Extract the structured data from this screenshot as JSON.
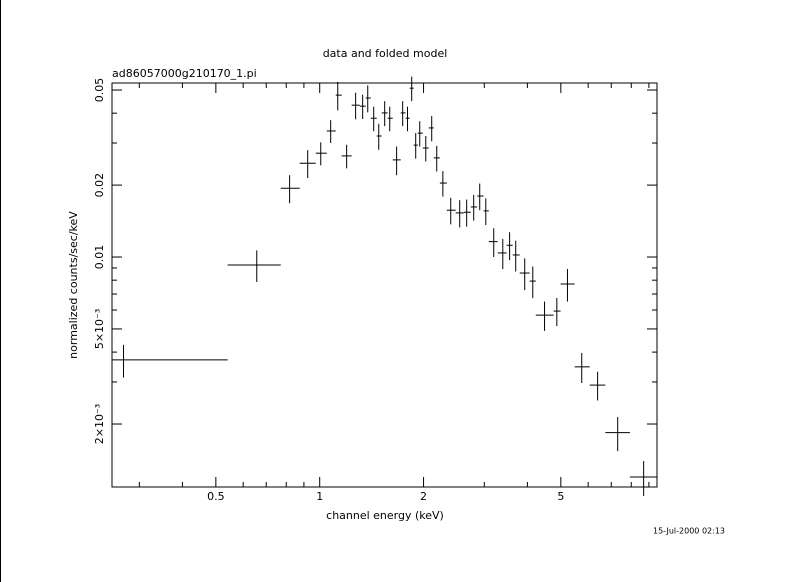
{
  "chart_data": {
    "type": "errorbar-scatter",
    "title": "data and folded model",
    "subtitle": "ad86057000g210170_1.pi",
    "x_label": "channel energy (keV)",
    "y_label": "normalized counts/sec/keV",
    "timestamp": "15-Jul-2000 02:13",
    "x_scale": "log",
    "y_scale": "log",
    "color": "#000000",
    "xlim": [
      0.25,
      9.5
    ],
    "ylim": [
      0.00109,
      0.0535
    ],
    "xticks": [
      0.5,
      1,
      2,
      5
    ],
    "yticks": [
      {
        "value": 0.002,
        "label": "2×10⁻³"
      },
      {
        "value": 0.005,
        "label": "5×10⁻³"
      },
      0.01,
      0.02,
      0.05
    ],
    "xminor": [
      0.3,
      0.4,
      0.6,
      0.7,
      0.8,
      0.9,
      3,
      4,
      6,
      7,
      8,
      9
    ],
    "yminor": [
      0.003,
      0.004,
      0.006,
      0.007,
      0.008,
      0.009,
      0.03,
      0.04
    ],
    "x": [
      0.27,
      0.657,
      0.818,
      0.923,
      1.007,
      1.076,
      1.128,
      1.197,
      1.271,
      1.332,
      1.378,
      1.434,
      1.483,
      1.543,
      1.596,
      1.671,
      1.74,
      1.797,
      1.848,
      1.898,
      1.95,
      2.03,
      2.112,
      2.184,
      2.275,
      2.398,
      2.546,
      2.667,
      2.795,
      2.91,
      3.03,
      3.195,
      3.394,
      3.552,
      3.7,
      3.929,
      4.146,
      4.485,
      4.868,
      5.226,
      5.749,
      6.391,
      7.308,
      8.69
    ],
    "x_low": [
      0.25,
      0.541,
      0.771,
      0.875,
      0.974,
      1.048,
      1.113,
      1.158,
      1.238,
      1.306,
      1.36,
      1.406,
      1.463,
      1.512,
      1.574,
      1.628,
      1.717,
      1.774,
      1.823,
      1.873,
      1.925,
      1.99,
      2.07,
      2.141,
      2.23,
      2.336,
      2.479,
      2.616,
      2.742,
      2.861,
      2.985,
      3.092,
      3.28,
      3.481,
      3.626,
      3.8,
      4.06,
      4.23,
      4.765,
      4.99,
      5.484,
      6.063,
      6.729,
      7.929
    ],
    "x_high": [
      0.541,
      0.771,
      0.875,
      0.974,
      1.048,
      1.113,
      1.158,
      1.238,
      1.306,
      1.36,
      1.406,
      1.463,
      1.512,
      1.574,
      1.628,
      1.717,
      1.774,
      1.823,
      1.873,
      1.925,
      1.99,
      2.07,
      2.141,
      2.23,
      2.336,
      2.479,
      2.616,
      2.742,
      2.861,
      2.985,
      3.092,
      3.28,
      3.481,
      3.626,
      3.8,
      4.06,
      4.23,
      4.765,
      4.99,
      5.484,
      6.063,
      6.729,
      7.929,
      9.48
    ],
    "values": [
      0.00371,
      0.00926,
      0.0194,
      0.0247,
      0.0272,
      0.0337,
      0.0476,
      0.0265,
      0.0432,
      0.0428,
      0.0463,
      0.0381,
      0.0321,
      0.0401,
      0.0381,
      0.0255,
      0.0401,
      0.0381,
      0.0509,
      0.0294,
      0.033,
      0.0286,
      0.0347,
      0.026,
      0.0204,
      0.0157,
      0.0153,
      0.0154,
      0.0162,
      0.018,
      0.0156,
      0.0116,
      0.0104,
      0.0112,
      0.0102,
      0.00857,
      0.00793,
      0.00571,
      0.00594,
      0.00771,
      0.00347,
      0.00291,
      0.00184,
      0.0012
    ],
    "y_err": [
      0.00058,
      0.0014,
      0.0026,
      0.0033,
      0.003,
      0.0037,
      0.0065,
      0.003,
      0.0055,
      0.005,
      0.006,
      0.0045,
      0.004,
      0.0048,
      0.0045,
      0.0035,
      0.0048,
      0.0045,
      0.006,
      0.0036,
      0.004,
      0.0035,
      0.0042,
      0.0032,
      0.0025,
      0.002,
      0.002,
      0.002,
      0.002,
      0.0023,
      0.002,
      0.0016,
      0.0015,
      0.0015,
      0.0015,
      0.0013,
      0.0012,
      0.0008,
      0.0008,
      0.0012,
      0.0005,
      0.0004,
      0.0003,
      0.0002
    ]
  }
}
